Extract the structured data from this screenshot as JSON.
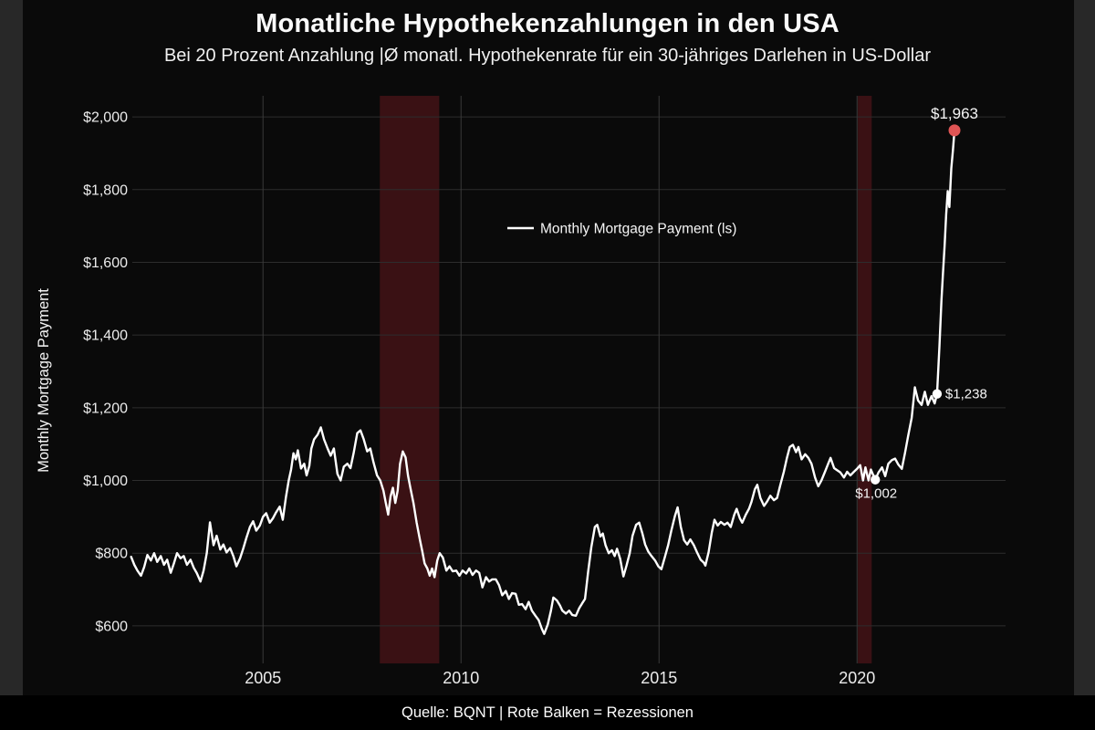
{
  "colors": {
    "background": "#0a0a0a",
    "frame": "#282828",
    "grid": "#2d2d2d",
    "year_grid": "#3a3a3a",
    "line": "#ffffff",
    "recession_band": "#3a1114",
    "endpoint_dot": "#e05555",
    "marker_dot": "#ffffff",
    "tick_text": "#ececec",
    "annotation_text": "#f5f5f5"
  },
  "chart_data": {
    "type": "line",
    "title": "Monatliche Hypothekenzahlungen in den USA",
    "subtitle": "Bei 20 Prozent Anzahlung |Ø monatl. Hypothekenrate für ein 30-jähriges Darlehen in US-Dollar",
    "source": "Quelle: BQNT | Rote Balken = Rezessionen",
    "ylabel": "Monthly Mortgage Payment",
    "xlabel": "",
    "grid": true,
    "legend": [
      "Monthly Mortgage Payment (ls)"
    ],
    "legend_position": "center-top",
    "x_range": [
      2001.7,
      2023.75
    ],
    "y_range": [
      532,
      2058
    ],
    "x_ticks": [
      2005,
      2010,
      2015,
      2020
    ],
    "x_tick_labels": [
      "2005",
      "2010",
      "2015",
      "2020"
    ],
    "y_ticks": [
      600,
      800,
      1000,
      1200,
      1400,
      1600,
      1800,
      2000
    ],
    "y_tick_labels": [
      "$600",
      "$800",
      "$1,000",
      "$1,200",
      "$1,400",
      "$1,600",
      "$1,800",
      "$2,000"
    ],
    "recessions": [
      [
        2007.95,
        2009.45
      ],
      [
        2020.02,
        2020.37
      ]
    ],
    "annotations": [
      {
        "t": 2022.46,
        "value": 1963,
        "label": "$1,963",
        "dot": "endpoint",
        "label_pos": "above"
      },
      {
        "t": 2022.02,
        "value": 1238,
        "label": "$1,238",
        "dot": "marker",
        "label_pos": "right"
      },
      {
        "t": 2020.46,
        "value": 1002,
        "label": "$1,002",
        "dot": "marker",
        "label_pos": "below"
      }
    ],
    "series": [
      {
        "name": "Monthly Mortgage Payment (ls)",
        "points": [
          [
            2001.67,
            790
          ],
          [
            2001.75,
            768
          ],
          [
            2001.83,
            752
          ],
          [
            2001.92,
            738
          ],
          [
            2002.0,
            762
          ],
          [
            2002.08,
            795
          ],
          [
            2002.17,
            780
          ],
          [
            2002.25,
            800
          ],
          [
            2002.33,
            776
          ],
          [
            2002.42,
            792
          ],
          [
            2002.5,
            768
          ],
          [
            2002.58,
            782
          ],
          [
            2002.67,
            746
          ],
          [
            2002.75,
            772
          ],
          [
            2002.83,
            800
          ],
          [
            2002.92,
            786
          ],
          [
            2003.0,
            792
          ],
          [
            2003.08,
            768
          ],
          [
            2003.17,
            782
          ],
          [
            2003.25,
            760
          ],
          [
            2003.33,
            745
          ],
          [
            2003.42,
            722
          ],
          [
            2003.5,
            752
          ],
          [
            2003.58,
            800
          ],
          [
            2003.66,
            885
          ],
          [
            2003.75,
            822
          ],
          [
            2003.83,
            848
          ],
          [
            2003.92,
            810
          ],
          [
            2004.0,
            824
          ],
          [
            2004.08,
            802
          ],
          [
            2004.17,
            814
          ],
          [
            2004.25,
            792
          ],
          [
            2004.33,
            764
          ],
          [
            2004.42,
            786
          ],
          [
            2004.5,
            812
          ],
          [
            2004.58,
            842
          ],
          [
            2004.67,
            872
          ],
          [
            2004.75,
            888
          ],
          [
            2004.83,
            862
          ],
          [
            2004.92,
            876
          ],
          [
            2005.0,
            900
          ],
          [
            2005.08,
            910
          ],
          [
            2005.17,
            884
          ],
          [
            2005.25,
            896
          ],
          [
            2005.33,
            912
          ],
          [
            2005.42,
            928
          ],
          [
            2005.5,
            892
          ],
          [
            2005.58,
            955
          ],
          [
            2005.65,
            1000
          ],
          [
            2005.71,
            1030
          ],
          [
            2005.77,
            1075
          ],
          [
            2005.83,
            1058
          ],
          [
            2005.88,
            1083
          ],
          [
            2005.96,
            1033
          ],
          [
            2006.04,
            1046
          ],
          [
            2006.1,
            1014
          ],
          [
            2006.17,
            1040
          ],
          [
            2006.22,
            1088
          ],
          [
            2006.29,
            1113
          ],
          [
            2006.38,
            1126
          ],
          [
            2006.46,
            1146
          ],
          [
            2006.54,
            1113
          ],
          [
            2006.63,
            1088
          ],
          [
            2006.71,
            1068
          ],
          [
            2006.79,
            1088
          ],
          [
            2006.88,
            1018
          ],
          [
            2006.96,
            1000
          ],
          [
            2007.04,
            1038
          ],
          [
            2007.13,
            1046
          ],
          [
            2007.21,
            1034
          ],
          [
            2007.29,
            1076
          ],
          [
            2007.38,
            1130
          ],
          [
            2007.46,
            1138
          ],
          [
            2007.54,
            1114
          ],
          [
            2007.63,
            1080
          ],
          [
            2007.71,
            1088
          ],
          [
            2007.79,
            1050
          ],
          [
            2007.88,
            1014
          ],
          [
            2007.96,
            1000
          ],
          [
            2008.04,
            972
          ],
          [
            2008.1,
            938
          ],
          [
            2008.16,
            906
          ],
          [
            2008.22,
            956
          ],
          [
            2008.28,
            980
          ],
          [
            2008.34,
            938
          ],
          [
            2008.4,
            972
          ],
          [
            2008.46,
            1046
          ],
          [
            2008.53,
            1080
          ],
          [
            2008.6,
            1063
          ],
          [
            2008.66,
            1014
          ],
          [
            2008.72,
            980
          ],
          [
            2008.8,
            938
          ],
          [
            2008.88,
            884
          ],
          [
            2008.96,
            838
          ],
          [
            2009.02,
            806
          ],
          [
            2009.08,
            772
          ],
          [
            2009.15,
            758
          ],
          [
            2009.21,
            738
          ],
          [
            2009.27,
            758
          ],
          [
            2009.33,
            734
          ],
          [
            2009.4,
            780
          ],
          [
            2009.46,
            800
          ],
          [
            2009.54,
            788
          ],
          [
            2009.63,
            752
          ],
          [
            2009.71,
            764
          ],
          [
            2009.79,
            750
          ],
          [
            2009.88,
            752
          ],
          [
            2009.96,
            738
          ],
          [
            2010.04,
            752
          ],
          [
            2010.13,
            744
          ],
          [
            2010.21,
            758
          ],
          [
            2010.29,
            740
          ],
          [
            2010.38,
            752
          ],
          [
            2010.46,
            746
          ],
          [
            2010.54,
            706
          ],
          [
            2010.63,
            734
          ],
          [
            2010.71,
            722
          ],
          [
            2010.79,
            728
          ],
          [
            2010.88,
            728
          ],
          [
            2010.96,
            712
          ],
          [
            2011.04,
            684
          ],
          [
            2011.13,
            696
          ],
          [
            2011.21,
            674
          ],
          [
            2011.29,
            690
          ],
          [
            2011.38,
            688
          ],
          [
            2011.46,
            658
          ],
          [
            2011.54,
            660
          ],
          [
            2011.63,
            646
          ],
          [
            2011.71,
            666
          ],
          [
            2011.79,
            642
          ],
          [
            2011.88,
            628
          ],
          [
            2011.96,
            616
          ],
          [
            2012.04,
            592
          ],
          [
            2012.1,
            578
          ],
          [
            2012.19,
            604
          ],
          [
            2012.27,
            642
          ],
          [
            2012.33,
            678
          ],
          [
            2012.42,
            670
          ],
          [
            2012.5,
            656
          ],
          [
            2012.56,
            642
          ],
          [
            2012.65,
            634
          ],
          [
            2012.73,
            642
          ],
          [
            2012.81,
            630
          ],
          [
            2012.9,
            628
          ],
          [
            2012.98,
            648
          ],
          [
            2013.06,
            662
          ],
          [
            2013.13,
            674
          ],
          [
            2013.21,
            748
          ],
          [
            2013.29,
            816
          ],
          [
            2013.38,
            872
          ],
          [
            2013.44,
            878
          ],
          [
            2013.52,
            846
          ],
          [
            2013.58,
            854
          ],
          [
            2013.65,
            822
          ],
          [
            2013.73,
            800
          ],
          [
            2013.81,
            808
          ],
          [
            2013.88,
            792
          ],
          [
            2013.94,
            812
          ],
          [
            2014.02,
            784
          ],
          [
            2014.1,
            736
          ],
          [
            2014.18,
            766
          ],
          [
            2014.26,
            800
          ],
          [
            2014.33,
            848
          ],
          [
            2014.42,
            878
          ],
          [
            2014.5,
            884
          ],
          [
            2014.58,
            854
          ],
          [
            2014.65,
            824
          ],
          [
            2014.73,
            804
          ],
          [
            2014.81,
            792
          ],
          [
            2014.9,
            780
          ],
          [
            2014.98,
            764
          ],
          [
            2015.06,
            756
          ],
          [
            2015.15,
            790
          ],
          [
            2015.23,
            822
          ],
          [
            2015.31,
            862
          ],
          [
            2015.4,
            902
          ],
          [
            2015.47,
            926
          ],
          [
            2015.55,
            872
          ],
          [
            2015.63,
            836
          ],
          [
            2015.71,
            824
          ],
          [
            2015.79,
            838
          ],
          [
            2015.88,
            822
          ],
          [
            2015.96,
            802
          ],
          [
            2016.05,
            782
          ],
          [
            2016.13,
            774
          ],
          [
            2016.17,
            766
          ],
          [
            2016.25,
            802
          ],
          [
            2016.33,
            856
          ],
          [
            2016.4,
            892
          ],
          [
            2016.48,
            876
          ],
          [
            2016.56,
            886
          ],
          [
            2016.65,
            878
          ],
          [
            2016.73,
            884
          ],
          [
            2016.81,
            872
          ],
          [
            2016.9,
            906
          ],
          [
            2016.96,
            922
          ],
          [
            2017.04,
            896
          ],
          [
            2017.1,
            884
          ],
          [
            2017.19,
            906
          ],
          [
            2017.27,
            922
          ],
          [
            2017.33,
            940
          ],
          [
            2017.42,
            976
          ],
          [
            2017.48,
            988
          ],
          [
            2017.56,
            952
          ],
          [
            2017.65,
            930
          ],
          [
            2017.73,
            942
          ],
          [
            2017.81,
            958
          ],
          [
            2017.9,
            946
          ],
          [
            2017.98,
            952
          ],
          [
            2018.06,
            986
          ],
          [
            2018.15,
            1024
          ],
          [
            2018.23,
            1062
          ],
          [
            2018.3,
            1092
          ],
          [
            2018.38,
            1098
          ],
          [
            2018.46,
            1078
          ],
          [
            2018.52,
            1092
          ],
          [
            2018.6,
            1058
          ],
          [
            2018.69,
            1072
          ],
          [
            2018.77,
            1062
          ],
          [
            2018.85,
            1046
          ],
          [
            2018.94,
            1008
          ],
          [
            2019.02,
            984
          ],
          [
            2019.1,
            1000
          ],
          [
            2019.19,
            1024
          ],
          [
            2019.27,
            1046
          ],
          [
            2019.33,
            1062
          ],
          [
            2019.42,
            1034
          ],
          [
            2019.5,
            1028
          ],
          [
            2019.58,
            1022
          ],
          [
            2019.67,
            1008
          ],
          [
            2019.75,
            1024
          ],
          [
            2019.83,
            1014
          ],
          [
            2019.92,
            1024
          ],
          [
            2020.0,
            1032
          ],
          [
            2020.08,
            1042
          ],
          [
            2020.15,
            1000
          ],
          [
            2020.21,
            1036
          ],
          [
            2020.29,
            1000
          ],
          [
            2020.35,
            1030
          ],
          [
            2020.42,
            1012
          ],
          [
            2020.46,
            1002
          ],
          [
            2020.54,
            1022
          ],
          [
            2020.63,
            1036
          ],
          [
            2020.71,
            1012
          ],
          [
            2020.79,
            1046
          ],
          [
            2020.88,
            1056
          ],
          [
            2020.96,
            1060
          ],
          [
            2021.04,
            1044
          ],
          [
            2021.13,
            1032
          ],
          [
            2021.21,
            1076
          ],
          [
            2021.29,
            1122
          ],
          [
            2021.38,
            1172
          ],
          [
            2021.46,
            1256
          ],
          [
            2021.54,
            1220
          ],
          [
            2021.63,
            1208
          ],
          [
            2021.71,
            1244
          ],
          [
            2021.79,
            1208
          ],
          [
            2021.88,
            1232
          ],
          [
            2021.96,
            1212
          ],
          [
            2022.02,
            1238
          ],
          [
            2022.08,
            1368
          ],
          [
            2022.13,
            1494
          ],
          [
            2022.17,
            1570
          ],
          [
            2022.21,
            1646
          ],
          [
            2022.25,
            1732
          ],
          [
            2022.29,
            1796
          ],
          [
            2022.33,
            1752
          ],
          [
            2022.38,
            1858
          ],
          [
            2022.42,
            1908
          ],
          [
            2022.46,
            1963
          ]
        ]
      }
    ]
  }
}
